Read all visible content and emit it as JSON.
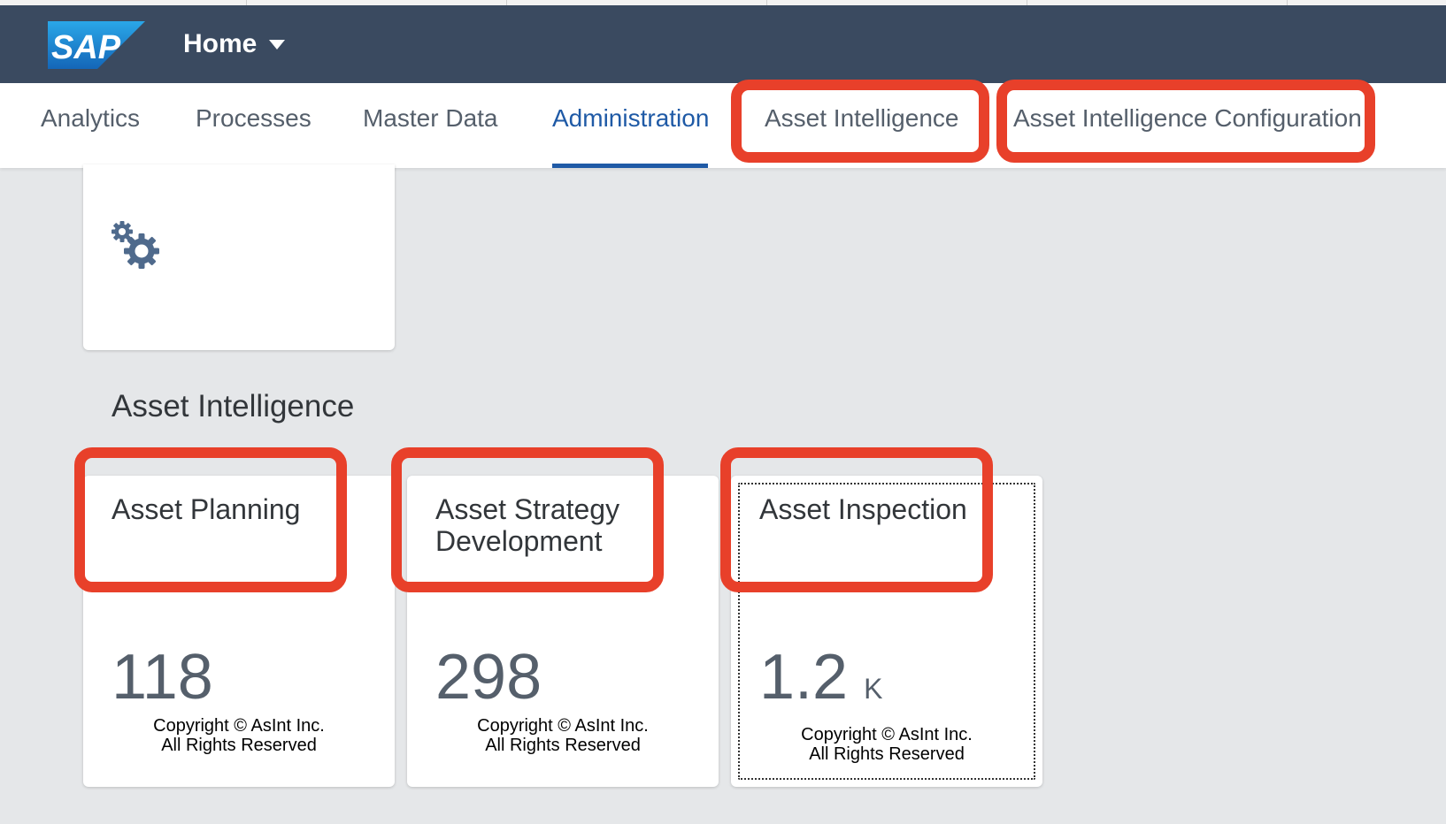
{
  "shell": {
    "logo_text": "SAP",
    "home_label": "Home",
    "brand_color": "#3a4a60"
  },
  "tabs": [
    {
      "label": "Analytics",
      "active": false
    },
    {
      "label": "Processes",
      "active": false
    },
    {
      "label": "Master Data",
      "active": false
    },
    {
      "label": "Administration",
      "active": true
    },
    {
      "label": "Asset Intelligence",
      "active": false,
      "highlighted": true
    },
    {
      "label": "Asset Intelligence Configuration",
      "active": false,
      "highlighted": true
    }
  ],
  "gear_tile": {
    "icon": "gears-icon"
  },
  "section": {
    "title": "Asset Intelligence"
  },
  "tiles": [
    {
      "title": "Asset Planning",
      "value": "118",
      "unit": "",
      "footer_line1": "Copyright © AsInt Inc.",
      "footer_line2": "All Rights Reserved",
      "highlighted": true
    },
    {
      "title": "Asset Strategy Development",
      "value": "298",
      "unit": "",
      "footer_line1": "Copyright © AsInt Inc.",
      "footer_line2": "All Rights Reserved",
      "highlighted": true
    },
    {
      "title": "Asset Inspection",
      "value": "1.2",
      "unit": "K",
      "footer_line1": "Copyright © AsInt Inc.",
      "footer_line2": "All Rights Reserved",
      "highlighted": true,
      "focused": true
    }
  ],
  "colors": {
    "highlight": "#e8402a",
    "active_tab": "#1f5aa6",
    "page_bg": "#e5e7e9"
  }
}
